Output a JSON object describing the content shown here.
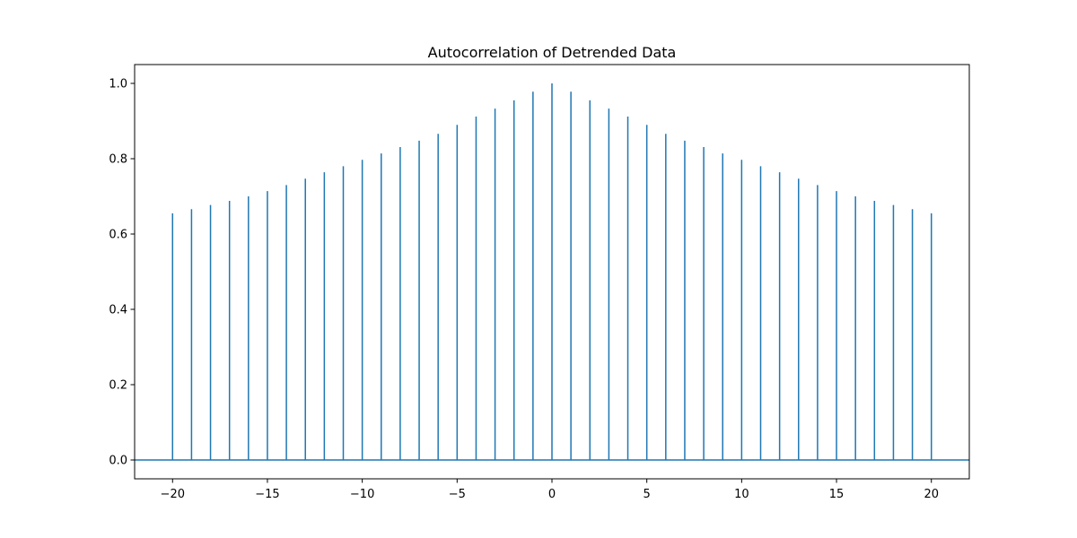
{
  "chart_data": {
    "type": "stem",
    "title": "Autocorrelation of Detrended Data",
    "xlabel": "",
    "ylabel": "",
    "xlim": [
      -22,
      22
    ],
    "ylim": [
      -0.05,
      1.05
    ],
    "grid": false,
    "legend": "none",
    "colors": {
      "stem": "#1f77b4",
      "axes": "#000000"
    },
    "baseline": 0,
    "xticks": [
      -20,
      -15,
      -10,
      -5,
      0,
      5,
      10,
      15,
      20
    ],
    "xtick_labels": [
      "−20",
      "−15",
      "−10",
      "−5",
      "0",
      "5",
      "10",
      "15",
      "20"
    ],
    "yticks": [
      0.0,
      0.2,
      0.4,
      0.6,
      0.8,
      1.0
    ],
    "ytick_labels": [
      "0.0",
      "0.2",
      "0.4",
      "0.6",
      "0.8",
      "1.0"
    ],
    "lags": [
      -20,
      -19,
      -18,
      -17,
      -16,
      -15,
      -14,
      -13,
      -12,
      -11,
      -10,
      -9,
      -8,
      -7,
      -6,
      -5,
      -4,
      -3,
      -2,
      -1,
      0,
      1,
      2,
      3,
      4,
      5,
      6,
      7,
      8,
      9,
      10,
      11,
      12,
      13,
      14,
      15,
      16,
      17,
      18,
      19,
      20
    ],
    "values": [
      0.655,
      0.666,
      0.677,
      0.688,
      0.7,
      0.714,
      0.73,
      0.747,
      0.764,
      0.78,
      0.797,
      0.814,
      0.831,
      0.848,
      0.866,
      0.89,
      0.912,
      0.933,
      0.955,
      0.978,
      1.0,
      0.978,
      0.955,
      0.933,
      0.912,
      0.89,
      0.866,
      0.848,
      0.831,
      0.814,
      0.797,
      0.78,
      0.764,
      0.747,
      0.73,
      0.714,
      0.7,
      0.688,
      0.677,
      0.666,
      0.655
    ]
  }
}
